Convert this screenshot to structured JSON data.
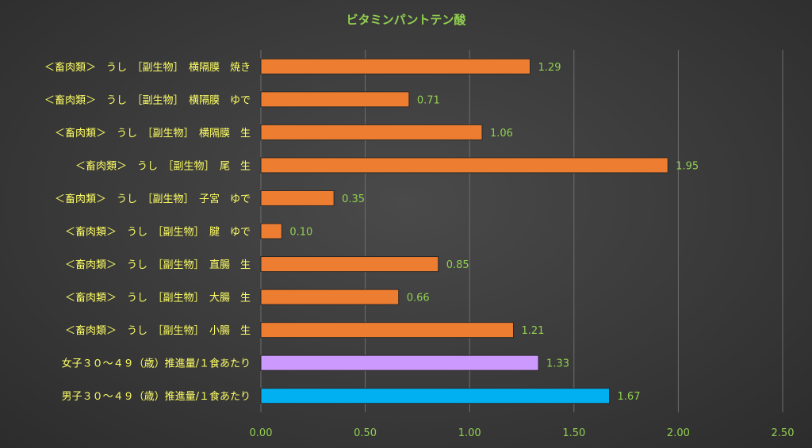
{
  "chart_data": {
    "type": "bar",
    "orientation": "horizontal",
    "title": "ビタミンパントテン酸",
    "xlabel": "",
    "ylabel": "",
    "xlim": [
      0,
      2.5
    ],
    "ticks": [
      "0.00",
      "0.50",
      "1.00",
      "1.50",
      "2.00",
      "2.50"
    ],
    "grid": true,
    "legend": "none",
    "categories": [
      "＜畜肉類＞　うし　［副生物］　横隔膜　焼き",
      "＜畜肉類＞　うし　［副生物］　横隔膜　ゆで",
      "＜畜肉類＞　うし　［副生物］　横隔膜　生",
      "＜畜肉類＞　うし　［副生物］　尾　生",
      "＜畜肉類＞　うし　［副生物］　子宮　ゆで",
      "＜畜肉類＞　うし　［副生物］　腱　ゆで",
      "＜畜肉類＞　うし　［副生物］　直腸　生",
      "＜畜肉類＞　うし　［副生物］　大腸　生",
      "＜畜肉類＞　うし　［副生物］　小腸　生",
      "女子３０～４９（歳）推進量/１食あたり",
      "男子３０～４９（歳）推進量/１食あたり"
    ],
    "values": [
      1.29,
      0.71,
      1.06,
      1.95,
      0.35,
      0.1,
      0.85,
      0.66,
      1.21,
      1.33,
      1.67
    ],
    "value_labels": [
      "1.29",
      "0.71",
      "1.06",
      "1.95",
      "0.35",
      "0.10",
      "0.85",
      "0.66",
      "1.21",
      "1.33",
      "1.67"
    ],
    "colors": [
      "#ed7d31",
      "#ed7d31",
      "#ed7d31",
      "#ed7d31",
      "#ed7d31",
      "#ed7d31",
      "#ed7d31",
      "#ed7d31",
      "#ed7d31",
      "#cc99ff",
      "#00b0f0"
    ]
  }
}
